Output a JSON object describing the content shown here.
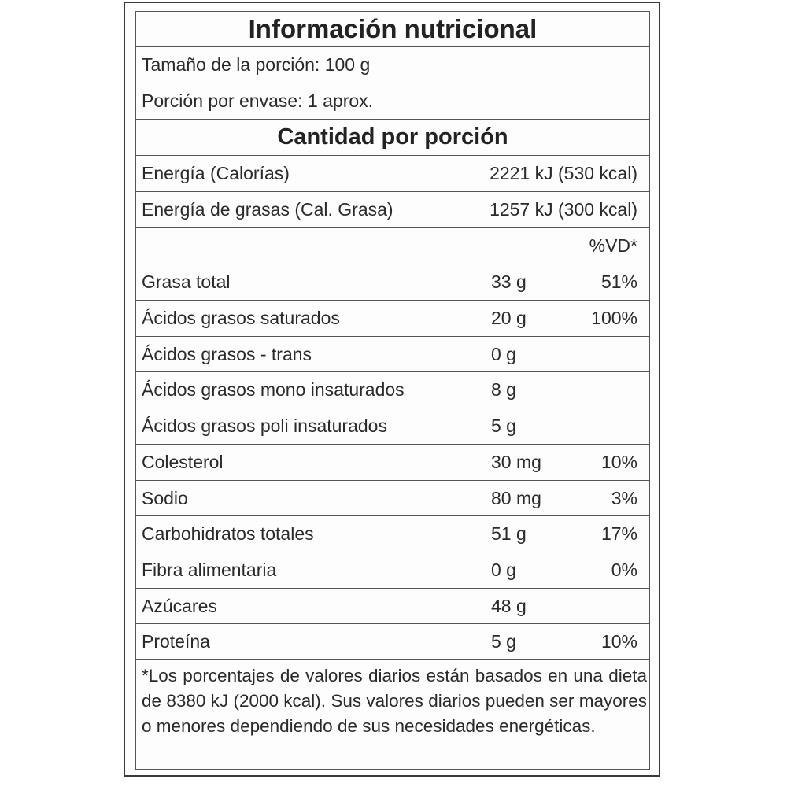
{
  "title": "Información nutricional",
  "serving_size": "Tamaño de la porción: 100 g",
  "servings_per_container": "Porción por envase: 1 aprox.",
  "amount_header": "Cantidad por porción",
  "energy": {
    "label": "Energía (Calorías)",
    "value": "2221 kJ (530 kcal)"
  },
  "fat_energy": {
    "label": "Energía de grasas (Cal. Grasa)",
    "value": "1257 kJ (300 kcal)"
  },
  "dv_header": "%VD*",
  "nutrients": [
    {
      "label": "Grasa total",
      "value": "33 g",
      "dv": "51%"
    },
    {
      "label": "Ácidos grasos saturados",
      "value": "20 g",
      "dv": "100%"
    },
    {
      "label": "Ácidos grasos - trans",
      "value": "0 g",
      "dv": ""
    },
    {
      "label": "Ácidos grasos mono insaturados",
      "value": "8 g",
      "dv": ""
    },
    {
      "label": "Ácidos grasos poli insaturados",
      "value": "5 g",
      "dv": ""
    },
    {
      "label": "Colesterol",
      "value": "30 mg",
      "dv": "10%"
    },
    {
      "label": "Sodio",
      "value": "80 mg",
      "dv": "3%"
    },
    {
      "label": "Carbohidratos totales",
      "value": "51 g",
      "dv": "17%"
    },
    {
      "label": "Fibra alimentaria",
      "value": "0 g",
      "dv": "0%"
    },
    {
      "label": "Azúcares",
      "value": "48 g",
      "dv": ""
    },
    {
      "label": "Proteína",
      "value": "5 g",
      "dv": "10%"
    }
  ],
  "footnote": "*Los porcentajes de valores diarios están basados en una dieta de 8380 kJ (2000 kcal). Sus valores diarios pueden ser mayores o menores dependiendo de sus necesidades energéticas."
}
